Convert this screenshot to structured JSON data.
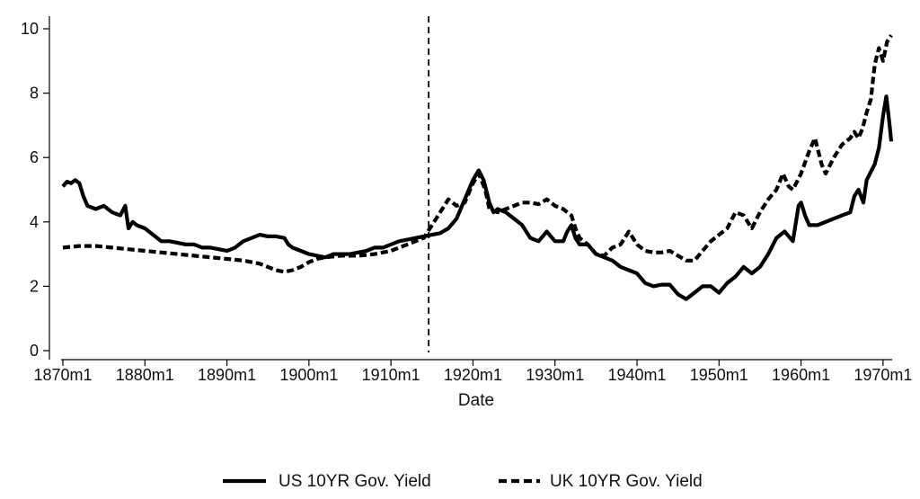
{
  "chart_data": {
    "type": "line",
    "title": "",
    "xlabel": "Date",
    "ylabel": "",
    "xlim": [
      1870.0,
      1971.0
    ],
    "ylim": [
      0,
      10
    ],
    "x_ticks": [
      {
        "value": 1870,
        "label": "1870m1"
      },
      {
        "value": 1880,
        "label": "1880m1"
      },
      {
        "value": 1890,
        "label": "1890m1"
      },
      {
        "value": 1900,
        "label": "1900m1"
      },
      {
        "value": 1910,
        "label": "1910m1"
      },
      {
        "value": 1920,
        "label": "1920m1"
      },
      {
        "value": 1930,
        "label": "1930m1"
      },
      {
        "value": 1940,
        "label": "1940m1"
      },
      {
        "value": 1950,
        "label": "1950m1"
      },
      {
        "value": 1960,
        "label": "1960m1"
      },
      {
        "value": 1970,
        "label": "1970m1"
      }
    ],
    "y_ticks": [
      0,
      2,
      4,
      6,
      8,
      10
    ],
    "grid": false,
    "legend_position": "bottom",
    "vertical_reference_line": {
      "x": 1914.6,
      "style": "dashed"
    },
    "series": [
      {
        "name": "US 10YR Gov. Yield",
        "style": "solid",
        "color": "#000000",
        "points": [
          [
            1870.0,
            5.1
          ],
          [
            1870.5,
            5.25
          ],
          [
            1871.0,
            5.2
          ],
          [
            1871.5,
            5.3
          ],
          [
            1872.0,
            5.2
          ],
          [
            1872.5,
            4.8
          ],
          [
            1873.0,
            4.5
          ],
          [
            1874.0,
            4.4
          ],
          [
            1875.0,
            4.5
          ],
          [
            1876.0,
            4.3
          ],
          [
            1877.0,
            4.2
          ],
          [
            1877.6,
            4.5
          ],
          [
            1878.0,
            3.8
          ],
          [
            1878.5,
            4.0
          ],
          [
            1879.0,
            3.9
          ],
          [
            1880.0,
            3.8
          ],
          [
            1881.0,
            3.6
          ],
          [
            1882.0,
            3.4
          ],
          [
            1883.0,
            3.4
          ],
          [
            1884.0,
            3.35
          ],
          [
            1885.0,
            3.3
          ],
          [
            1886.0,
            3.3
          ],
          [
            1887.0,
            3.2
          ],
          [
            1888.0,
            3.2
          ],
          [
            1889.0,
            3.15
          ],
          [
            1890.0,
            3.1
          ],
          [
            1891.0,
            3.2
          ],
          [
            1892.0,
            3.4
          ],
          [
            1893.0,
            3.5
          ],
          [
            1894.0,
            3.6
          ],
          [
            1895.0,
            3.55
          ],
          [
            1896.0,
            3.55
          ],
          [
            1897.0,
            3.5
          ],
          [
            1897.5,
            3.3
          ],
          [
            1898.0,
            3.2
          ],
          [
            1899.0,
            3.1
          ],
          [
            1900.0,
            3.0
          ],
          [
            1901.0,
            2.95
          ],
          [
            1902.0,
            2.9
          ],
          [
            1903.0,
            3.0
          ],
          [
            1904.0,
            3.0
          ],
          [
            1905.0,
            3.0
          ],
          [
            1906.0,
            3.05
          ],
          [
            1907.0,
            3.1
          ],
          [
            1908.0,
            3.2
          ],
          [
            1909.0,
            3.2
          ],
          [
            1910.0,
            3.3
          ],
          [
            1911.0,
            3.4
          ],
          [
            1912.0,
            3.45
          ],
          [
            1913.0,
            3.5
          ],
          [
            1914.0,
            3.55
          ],
          [
            1915.0,
            3.6
          ],
          [
            1916.0,
            3.65
          ],
          [
            1917.0,
            3.8
          ],
          [
            1918.0,
            4.1
          ],
          [
            1919.0,
            4.7
          ],
          [
            1920.0,
            5.3
          ],
          [
            1920.7,
            5.6
          ],
          [
            1921.3,
            5.3
          ],
          [
            1922.0,
            4.6
          ],
          [
            1922.5,
            4.3
          ],
          [
            1923.0,
            4.4
          ],
          [
            1924.0,
            4.3
          ],
          [
            1925.0,
            4.1
          ],
          [
            1926.0,
            3.9
          ],
          [
            1927.0,
            3.5
          ],
          [
            1928.0,
            3.4
          ],
          [
            1929.0,
            3.7
          ],
          [
            1930.0,
            3.4
          ],
          [
            1931.0,
            3.4
          ],
          [
            1931.5,
            3.7
          ],
          [
            1932.0,
            3.9
          ],
          [
            1932.5,
            3.5
          ],
          [
            1933.0,
            3.3
          ],
          [
            1934.0,
            3.3
          ],
          [
            1935.0,
            3.0
          ],
          [
            1936.0,
            2.9
          ],
          [
            1937.0,
            2.8
          ],
          [
            1938.0,
            2.6
          ],
          [
            1939.0,
            2.5
          ],
          [
            1940.0,
            2.4
          ],
          [
            1941.0,
            2.1
          ],
          [
            1942.0,
            2.0
          ],
          [
            1943.0,
            2.05
          ],
          [
            1944.0,
            2.05
          ],
          [
            1945.0,
            1.75
          ],
          [
            1946.0,
            1.6
          ],
          [
            1947.0,
            1.8
          ],
          [
            1948.0,
            2.0
          ],
          [
            1949.0,
            2.0
          ],
          [
            1950.0,
            1.8
          ],
          [
            1951.0,
            2.1
          ],
          [
            1952.0,
            2.3
          ],
          [
            1953.0,
            2.6
          ],
          [
            1954.0,
            2.4
          ],
          [
            1955.0,
            2.6
          ],
          [
            1956.0,
            3.0
          ],
          [
            1957.0,
            3.5
          ],
          [
            1958.0,
            3.7
          ],
          [
            1959.0,
            3.4
          ],
          [
            1959.7,
            4.5
          ],
          [
            1960.0,
            4.6
          ],
          [
            1960.5,
            4.2
          ],
          [
            1961.0,
            3.9
          ],
          [
            1962.0,
            3.9
          ],
          [
            1963.0,
            4.0
          ],
          [
            1964.0,
            4.1
          ],
          [
            1965.0,
            4.2
          ],
          [
            1966.0,
            4.3
          ],
          [
            1966.5,
            4.8
          ],
          [
            1967.0,
            5.0
          ],
          [
            1967.6,
            4.6
          ],
          [
            1968.0,
            5.3
          ],
          [
            1969.0,
            5.8
          ],
          [
            1969.5,
            6.3
          ],
          [
            1970.0,
            7.3
          ],
          [
            1970.4,
            7.9
          ],
          [
            1970.8,
            7.0
          ],
          [
            1971.0,
            6.5
          ]
        ]
      },
      {
        "name": "UK 10YR Gov. Yield",
        "style": "dashed",
        "color": "#000000",
        "points": [
          [
            1870.0,
            3.2
          ],
          [
            1872.0,
            3.25
          ],
          [
            1874.0,
            3.25
          ],
          [
            1876.0,
            3.2
          ],
          [
            1878.0,
            3.15
          ],
          [
            1880.0,
            3.1
          ],
          [
            1882.0,
            3.05
          ],
          [
            1884.0,
            3.0
          ],
          [
            1886.0,
            2.95
          ],
          [
            1888.0,
            2.9
          ],
          [
            1890.0,
            2.85
          ],
          [
            1892.0,
            2.8
          ],
          [
            1894.0,
            2.7
          ],
          [
            1895.0,
            2.6
          ],
          [
            1896.0,
            2.5
          ],
          [
            1897.0,
            2.45
          ],
          [
            1898.0,
            2.5
          ],
          [
            1899.0,
            2.6
          ],
          [
            1900.0,
            2.75
          ],
          [
            1901.0,
            2.85
          ],
          [
            1902.0,
            2.9
          ],
          [
            1904.0,
            2.95
          ],
          [
            1906.0,
            2.95
          ],
          [
            1908.0,
            3.0
          ],
          [
            1910.0,
            3.1
          ],
          [
            1912.0,
            3.3
          ],
          [
            1913.0,
            3.4
          ],
          [
            1914.0,
            3.5
          ],
          [
            1915.0,
            3.9
          ],
          [
            1916.0,
            4.3
          ],
          [
            1917.0,
            4.7
          ],
          [
            1918.0,
            4.5
          ],
          [
            1919.0,
            4.6
          ],
          [
            1920.0,
            5.2
          ],
          [
            1920.7,
            5.5
          ],
          [
            1921.5,
            5.0
          ],
          [
            1922.0,
            4.4
          ],
          [
            1923.0,
            4.3
          ],
          [
            1924.0,
            4.4
          ],
          [
            1925.0,
            4.5
          ],
          [
            1926.0,
            4.6
          ],
          [
            1927.0,
            4.6
          ],
          [
            1928.0,
            4.55
          ],
          [
            1929.0,
            4.7
          ],
          [
            1930.0,
            4.5
          ],
          [
            1931.0,
            4.4
          ],
          [
            1932.0,
            4.2
          ],
          [
            1932.5,
            3.8
          ],
          [
            1933.0,
            3.5
          ],
          [
            1934.0,
            3.3
          ],
          [
            1935.0,
            3.0
          ],
          [
            1936.0,
            2.95
          ],
          [
            1937.0,
            3.2
          ],
          [
            1938.0,
            3.3
          ],
          [
            1939.0,
            3.7
          ],
          [
            1940.0,
            3.3
          ],
          [
            1941.0,
            3.1
          ],
          [
            1942.0,
            3.05
          ],
          [
            1943.0,
            3.05
          ],
          [
            1944.0,
            3.1
          ],
          [
            1945.0,
            2.95
          ],
          [
            1946.0,
            2.8
          ],
          [
            1947.0,
            2.8
          ],
          [
            1948.0,
            3.1
          ],
          [
            1949.0,
            3.4
          ],
          [
            1950.0,
            3.6
          ],
          [
            1951.0,
            3.8
          ],
          [
            1952.0,
            4.3
          ],
          [
            1953.0,
            4.2
          ],
          [
            1954.0,
            3.8
          ],
          [
            1955.0,
            4.3
          ],
          [
            1956.0,
            4.7
          ],
          [
            1957.0,
            5.0
          ],
          [
            1957.8,
            5.5
          ],
          [
            1958.5,
            5.1
          ],
          [
            1959.0,
            5.0
          ],
          [
            1960.0,
            5.5
          ],
          [
            1961.0,
            6.2
          ],
          [
            1961.7,
            6.6
          ],
          [
            1962.5,
            5.8
          ],
          [
            1963.0,
            5.5
          ],
          [
            1964.0,
            6.0
          ],
          [
            1965.0,
            6.4
          ],
          [
            1966.0,
            6.6
          ],
          [
            1966.5,
            6.8
          ],
          [
            1967.0,
            6.6
          ],
          [
            1967.5,
            6.9
          ],
          [
            1968.0,
            7.4
          ],
          [
            1968.5,
            7.8
          ],
          [
            1969.0,
            8.9
          ],
          [
            1969.5,
            9.4
          ],
          [
            1970.0,
            9.0
          ],
          [
            1970.5,
            9.6
          ],
          [
            1971.0,
            9.8
          ]
        ]
      }
    ]
  }
}
